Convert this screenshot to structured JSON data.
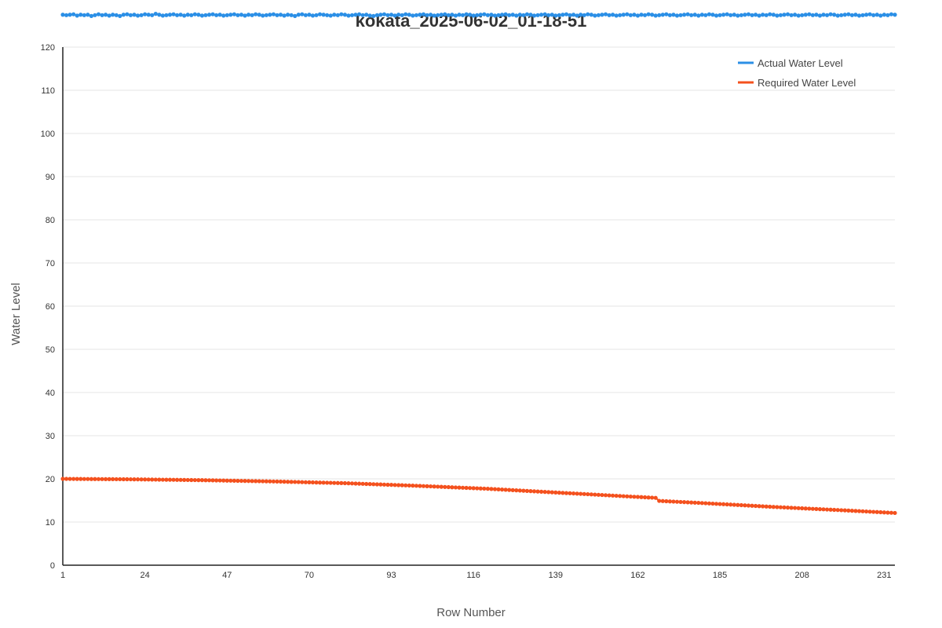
{
  "chart_data": {
    "type": "line",
    "title": "kokata_2025-06-02_01-18-51",
    "xlabel": "Row Number",
    "ylabel": "Water Level",
    "xlim": [
      1,
      234
    ],
    "ylim": [
      0,
      120
    ],
    "y_ticks": [
      0,
      10,
      20,
      30,
      40,
      50,
      60,
      70,
      80,
      90,
      100,
      110,
      120
    ],
    "x_ticks": [
      1,
      24,
      47,
      70,
      93,
      116,
      139,
      162,
      185,
      208,
      231
    ],
    "grid": true,
    "legend_position": "top-right",
    "series": [
      {
        "name": "Actual Water Level",
        "color": "#2b8fe6",
        "x_start": 1,
        "x_end": 234,
        "values": [
          127.5,
          127.4,
          127.5,
          127.6,
          127.3,
          127.5,
          127.4,
          127.5,
          127.2,
          127.4,
          127.6,
          127.4,
          127.5,
          127.3,
          127.5,
          127.4,
          127.2,
          127.5,
          127.6,
          127.4,
          127.5,
          127.3,
          127.4,
          127.6,
          127.5,
          127.4,
          127.7,
          127.5,
          127.3,
          127.4,
          127.5,
          127.6,
          127.4,
          127.5,
          127.3,
          127.5,
          127.4,
          127.6,
          127.5,
          127.3,
          127.4,
          127.5,
          127.6,
          127.4,
          127.5,
          127.3,
          127.4,
          127.5,
          127.6,
          127.4,
          127.5,
          127.3,
          127.5,
          127.4,
          127.6,
          127.5,
          127.3,
          127.4,
          127.5,
          127.6,
          127.4,
          127.5,
          127.3,
          127.5,
          127.4,
          127.2,
          127.5,
          127.6,
          127.4,
          127.5,
          127.3,
          127.4,
          127.6,
          127.5,
          127.4,
          127.3,
          127.5,
          127.4,
          127.6,
          127.5,
          127.3,
          127.4,
          127.5,
          127.6,
          127.4,
          127.5,
          127.3,
          127.2,
          127.4,
          127.5,
          127.6,
          127.4,
          127.5,
          127.3,
          127.5,
          127.4,
          127.6,
          127.5,
          127.3,
          127.4,
          127.5,
          127.6,
          127.4,
          127.5,
          127.3,
          127.4,
          127.5,
          127.6,
          127.4,
          127.5,
          127.3,
          127.5,
          127.4,
          127.6,
          127.5,
          127.3,
          127.4,
          127.5,
          127.6,
          127.4,
          127.5,
          127.3,
          127.4,
          127.5,
          127.6,
          127.4,
          127.5,
          127.3,
          127.5,
          127.4,
          127.6,
          127.5,
          127.3,
          127.4,
          127.5,
          127.6,
          127.4,
          127.5,
          127.3,
          127.4,
          127.5,
          127.6,
          127.4,
          127.5,
          127.3,
          127.5,
          127.4,
          127.6,
          127.5,
          127.3,
          127.4,
          127.5,
          127.6,
          127.4,
          127.5,
          127.3,
          127.4,
          127.5,
          127.6,
          127.4,
          127.5,
          127.3,
          127.5,
          127.4,
          127.6,
          127.5,
          127.3,
          127.4,
          127.5,
          127.6,
          127.4,
          127.5,
          127.3,
          127.4,
          127.5,
          127.6,
          127.4,
          127.5,
          127.3,
          127.5,
          127.4,
          127.6,
          127.5,
          127.3,
          127.4,
          127.5,
          127.6,
          127.4,
          127.5,
          127.3,
          127.4,
          127.5,
          127.6,
          127.4,
          127.5,
          127.3,
          127.5,
          127.4,
          127.6,
          127.5,
          127.3,
          127.4,
          127.5,
          127.6,
          127.4,
          127.5,
          127.3,
          127.4,
          127.5,
          127.6,
          127.4,
          127.5,
          127.3,
          127.5,
          127.4,
          127.6,
          127.5,
          127.3,
          127.4,
          127.5,
          127.6,
          127.4,
          127.5,
          127.3,
          127.4,
          127.5,
          127.6,
          127.4,
          127.5,
          127.3,
          127.5,
          127.4,
          127.6,
          127.5
        ]
      },
      {
        "name": "Required Water Level",
        "color": "#f4511e",
        "x": [
          1,
          20,
          40,
          60,
          80,
          100,
          120,
          140,
          160,
          167,
          168,
          180,
          200,
          220,
          234
        ],
        "y": [
          20.0,
          19.9,
          19.7,
          19.4,
          19.0,
          18.4,
          17.7,
          16.8,
          15.9,
          15.6,
          14.9,
          14.4,
          13.5,
          12.7,
          12.1
        ]
      }
    ]
  }
}
